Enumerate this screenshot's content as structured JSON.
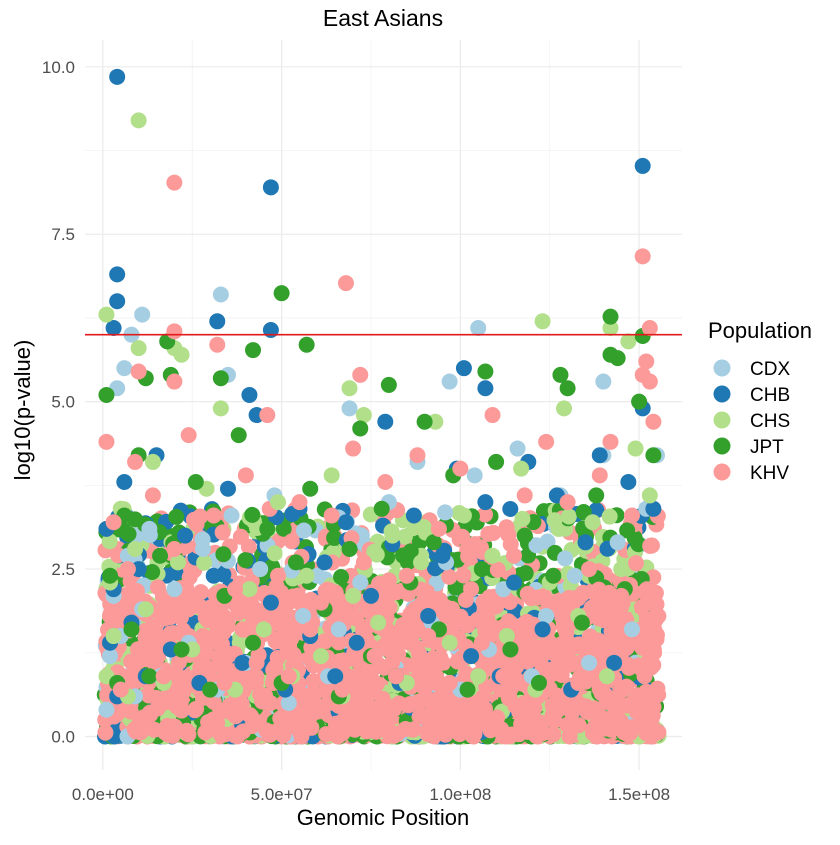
{
  "chart_data": {
    "type": "scatter",
    "title": "East Asians",
    "xlabel": "Genomic Position",
    "ylabel": "log10(p-value)",
    "xlim": [
      -5000000,
      162000000
    ],
    "ylim": [
      -0.5,
      10.4
    ],
    "x_ticks": [
      0,
      50000000,
      100000000,
      150000000
    ],
    "x_tick_labels": [
      "0.0e+00",
      "5.0e+07",
      "1.0e+08",
      "1.5e+08"
    ],
    "y_ticks": [
      0,
      2.5,
      5,
      7.5,
      10
    ],
    "y_tick_labels": [
      "0.0",
      "2.5",
      "5.0",
      "7.5",
      "10.0"
    ],
    "grid": true,
    "threshold_line": {
      "y": 6,
      "color": "#e31a1c"
    },
    "legend": {
      "title": "Population",
      "placement": "right"
    },
    "series": [
      {
        "name": "CDX",
        "color": "#a6cee3",
        "x": [
          1000000,
          2000000,
          3000000,
          4000000,
          5000000,
          7000000,
          9000000,
          11000000,
          13000000,
          16000000,
          20000000,
          24000000,
          28000000,
          32000000,
          36000000,
          40000000,
          44000000,
          48000000,
          52000000,
          56000000,
          60000000,
          63000000,
          66000000,
          69000000,
          72000000,
          76000000,
          80000000,
          84000000,
          88000000,
          92000000,
          96000000,
          100000000,
          104000000,
          108000000,
          112000000,
          116000000,
          120000000,
          124000000,
          128000000,
          132000000,
          136000000,
          140000000,
          144000000,
          148000000,
          152000000,
          155000000,
          11000000,
          33000000,
          105000000,
          140000000,
          8000000,
          6000000,
          4000000,
          35000000,
          97000000
        ],
        "y": [
          0.4,
          1.2,
          2.1,
          0.8,
          1.5,
          2.7,
          0.6,
          1.9,
          3.1,
          0.9,
          2.2,
          1.4,
          2.8,
          0.7,
          3.3,
          1.1,
          2.5,
          3.6,
          0.5,
          1.8,
          2.4,
          0.9,
          1.6,
          4.9,
          2.3,
          1.2,
          3.5,
          0.8,
          4.1,
          1.7,
          2.6,
          0.7,
          3.9,
          1.3,
          2.2,
          4.3,
          0.9,
          1.8,
          3.6,
          2.4,
          1.1,
          4.2,
          2.9,
          1.6,
          3.4,
          4.2,
          6.3,
          6.6,
          6.1,
          5.3,
          6.0,
          5.5,
          5.2,
          5.4,
          5.3
        ]
      },
      {
        "name": "CHB",
        "color": "#1f78b4",
        "x": [
          1000000,
          2000000,
          3000000,
          4000000,
          6000000,
          8000000,
          10000000,
          12000000,
          15000000,
          19000000,
          23000000,
          27000000,
          31000000,
          35000000,
          39000000,
          43000000,
          47000000,
          51000000,
          55000000,
          58000000,
          62000000,
          65000000,
          68000000,
          71000000,
          75000000,
          79000000,
          83000000,
          87000000,
          91000000,
          95000000,
          99000000,
          103000000,
          107000000,
          111000000,
          115000000,
          119000000,
          123000000,
          127000000,
          131000000,
          135000000,
          139000000,
          143000000,
          147000000,
          151000000,
          154000000,
          4000000,
          47000000,
          151000000,
          4000000,
          4000000,
          32000000,
          47000000,
          3000000,
          101000000,
          107000000,
          41000000
        ],
        "y": [
          3.1,
          1.4,
          2.2,
          0.6,
          3.8,
          1.7,
          2.5,
          0.9,
          4.2,
          1.3,
          3.0,
          0.8,
          2.4,
          3.7,
          1.1,
          4.8,
          2.0,
          0.7,
          3.4,
          1.5,
          2.6,
          0.9,
          3.2,
          1.4,
          2.1,
          4.7,
          0.8,
          3.3,
          1.8,
          2.7,
          4.0,
          1.2,
          3.5,
          0.9,
          2.3,
          4.1,
          1.6,
          3.6,
          0.7,
          2.9,
          4.2,
          1.1,
          3.8,
          4.9,
          3.4,
          9.85,
          8.2,
          8.52,
          6.9,
          6.5,
          6.2,
          6.07,
          6.1,
          5.5,
          5.2,
          5.1
        ]
      },
      {
        "name": "CHS",
        "color": "#b2df8a",
        "x": [
          1000000,
          2000000,
          3000000,
          5000000,
          7000000,
          9000000,
          12000000,
          14000000,
          17000000,
          21000000,
          25000000,
          29000000,
          33000000,
          37000000,
          41000000,
          45000000,
          49000000,
          53000000,
          57000000,
          61000000,
          64000000,
          67000000,
          70000000,
          73000000,
          77000000,
          81000000,
          85000000,
          89000000,
          93000000,
          97000000,
          101000000,
          105000000,
          109000000,
          113000000,
          117000000,
          121000000,
          125000000,
          129000000,
          133000000,
          137000000,
          141000000,
          145000000,
          149000000,
          153000000,
          10000000,
          123000000,
          142000000,
          1000000,
          20000000,
          22000000,
          147000000,
          10000000,
          69000000
        ],
        "y": [
          0.9,
          2.3,
          1.5,
          3.4,
          0.6,
          2.8,
          1.9,
          4.1,
          0.8,
          2.6,
          1.3,
          3.7,
          4.9,
          0.7,
          2.2,
          1.6,
          3.5,
          0.9,
          2.4,
          1.2,
          3.9,
          0.6,
          2.1,
          4.8,
          1.7,
          3.0,
          0.8,
          2.6,
          4.7,
          1.4,
          3.3,
          0.9,
          2.7,
          1.5,
          4.0,
          0.7,
          2.3,
          4.9,
          1.8,
          3.2,
          0.9,
          2.5,
          4.3,
          3.6,
          9.2,
          6.2,
          6.1,
          6.3,
          5.8,
          5.7,
          5.9,
          5.8,
          5.2
        ]
      },
      {
        "name": "JPT",
        "color": "#33a02c",
        "x": [
          1000000,
          2000000,
          4000000,
          6000000,
          8000000,
          10000000,
          13000000,
          16000000,
          18000000,
          22000000,
          26000000,
          30000000,
          34000000,
          38000000,
          42000000,
          46000000,
          50000000,
          54000000,
          58000000,
          62000000,
          66000000,
          69000000,
          72000000,
          75000000,
          78000000,
          82000000,
          86000000,
          90000000,
          94000000,
          98000000,
          102000000,
          106000000,
          110000000,
          114000000,
          118000000,
          122000000,
          126000000,
          130000000,
          134000000,
          138000000,
          142000000,
          146000000,
          150000000,
          154000000,
          50000000,
          142000000,
          151000000,
          42000000,
          57000000,
          144000000,
          19000000,
          128000000,
          33000000,
          12000000,
          80000000,
          107000000
        ],
        "y": [
          5.1,
          2.4,
          0.8,
          3.3,
          1.6,
          4.2,
          0.9,
          2.7,
          5.9,
          1.3,
          3.8,
          0.7,
          2.1,
          4.5,
          1.4,
          3.1,
          0.8,
          2.6,
          3.7,
          1.9,
          0.6,
          2.8,
          4.6,
          1.2,
          3.4,
          0.9,
          2.3,
          4.7,
          1.6,
          3.9,
          0.7,
          2.5,
          4.1,
          1.3,
          3.0,
          0.8,
          2.4,
          5.2,
          1.7,
          3.6,
          5.7,
          2.2,
          5.0,
          4.2,
          6.62,
          6.27,
          5.98,
          5.77,
          5.85,
          5.65,
          5.4,
          5.4,
          5.35,
          5.35,
          5.25,
          5.45
        ]
      },
      {
        "name": "KHV",
        "color": "#fb9a99",
        "x": [
          1000000,
          2000000,
          3000000,
          5000000,
          7000000,
          9000000,
          11000000,
          14000000,
          17000000,
          20000000,
          24000000,
          28000000,
          31000000,
          34000000,
          37000000,
          40000000,
          43000000,
          46000000,
          49000000,
          52000000,
          55000000,
          58000000,
          61000000,
          64000000,
          67000000,
          70000000,
          73000000,
          76000000,
          79000000,
          82000000,
          85000000,
          88000000,
          91000000,
          94000000,
          97000000,
          100000000,
          103000000,
          106000000,
          109000000,
          112000000,
          115000000,
          118000000,
          121000000,
          124000000,
          127000000,
          130000000,
          133000000,
          136000000,
          139000000,
          142000000,
          145000000,
          148000000,
          151000000,
          154000000,
          20000000,
          68000000,
          151000000,
          153000000,
          20000000,
          32000000,
          72000000,
          10000000,
          20000000,
          152000000,
          153000000
        ],
        "y": [
          4.4,
          1.8,
          3.2,
          0.7,
          2.5,
          4.1,
          1.3,
          3.6,
          0.9,
          2.8,
          4.5,
          1.5,
          3.3,
          0.8,
          2.2,
          3.9,
          1.1,
          4.8,
          2.4,
          0.9,
          3.5,
          1.6,
          2.0,
          3.3,
          0.7,
          4.3,
          2.6,
          1.2,
          3.8,
          0.9,
          2.4,
          4.2,
          1.5,
          3.1,
          0.8,
          4.0,
          2.2,
          1.4,
          4.8,
          0.9,
          2.7,
          3.6,
          1.2,
          4.4,
          2.0,
          3.5,
          0.8,
          2.5,
          3.9,
          4.4,
          2.1,
          3.3,
          5.4,
          4.7,
          8.27,
          6.77,
          7.17,
          6.1,
          6.05,
          5.85,
          5.4,
          5.45,
          5.3,
          5.6,
          5.3
        ]
      }
    ]
  }
}
